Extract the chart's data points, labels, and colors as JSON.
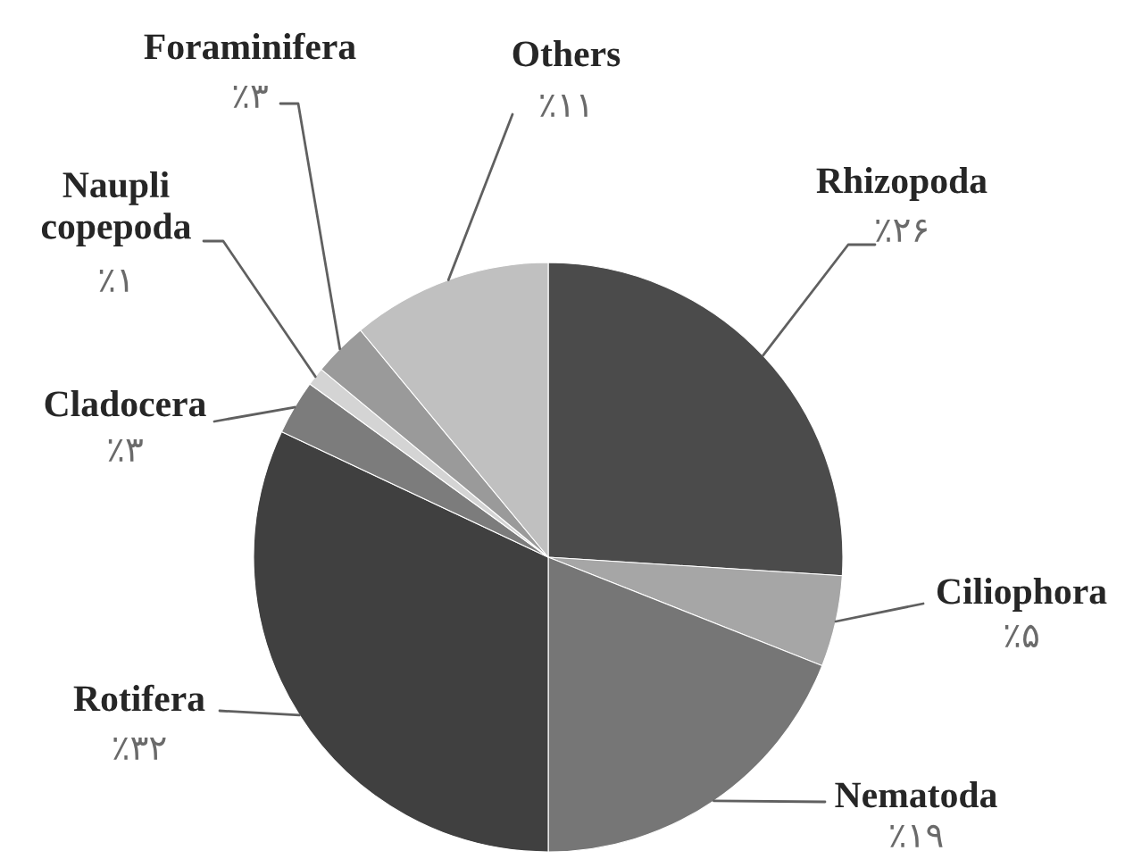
{
  "chart_data": {
    "type": "pie",
    "categories": [
      "Rhizopoda",
      "Ciliophora",
      "Nematoda",
      "Rotifera",
      "Cladocera",
      "Naupli copepoda",
      "Foraminifera",
      "Others"
    ],
    "values": [
      26,
      5,
      19,
      32,
      3,
      1,
      3,
      11
    ],
    "colors": [
      "#4b4b4b",
      "#a6a6a6",
      "#767676",
      "#404040",
      "#7c7c7c",
      "#d4d4d4",
      "#9a9a9a",
      "#c0c0c0"
    ],
    "value_labels": [
      "٪۲۶",
      "٪۵",
      "٪۱۹",
      "٪۳۲",
      "٪۳",
      "٪۱",
      "٪۳",
      "٪۱۱"
    ]
  }
}
